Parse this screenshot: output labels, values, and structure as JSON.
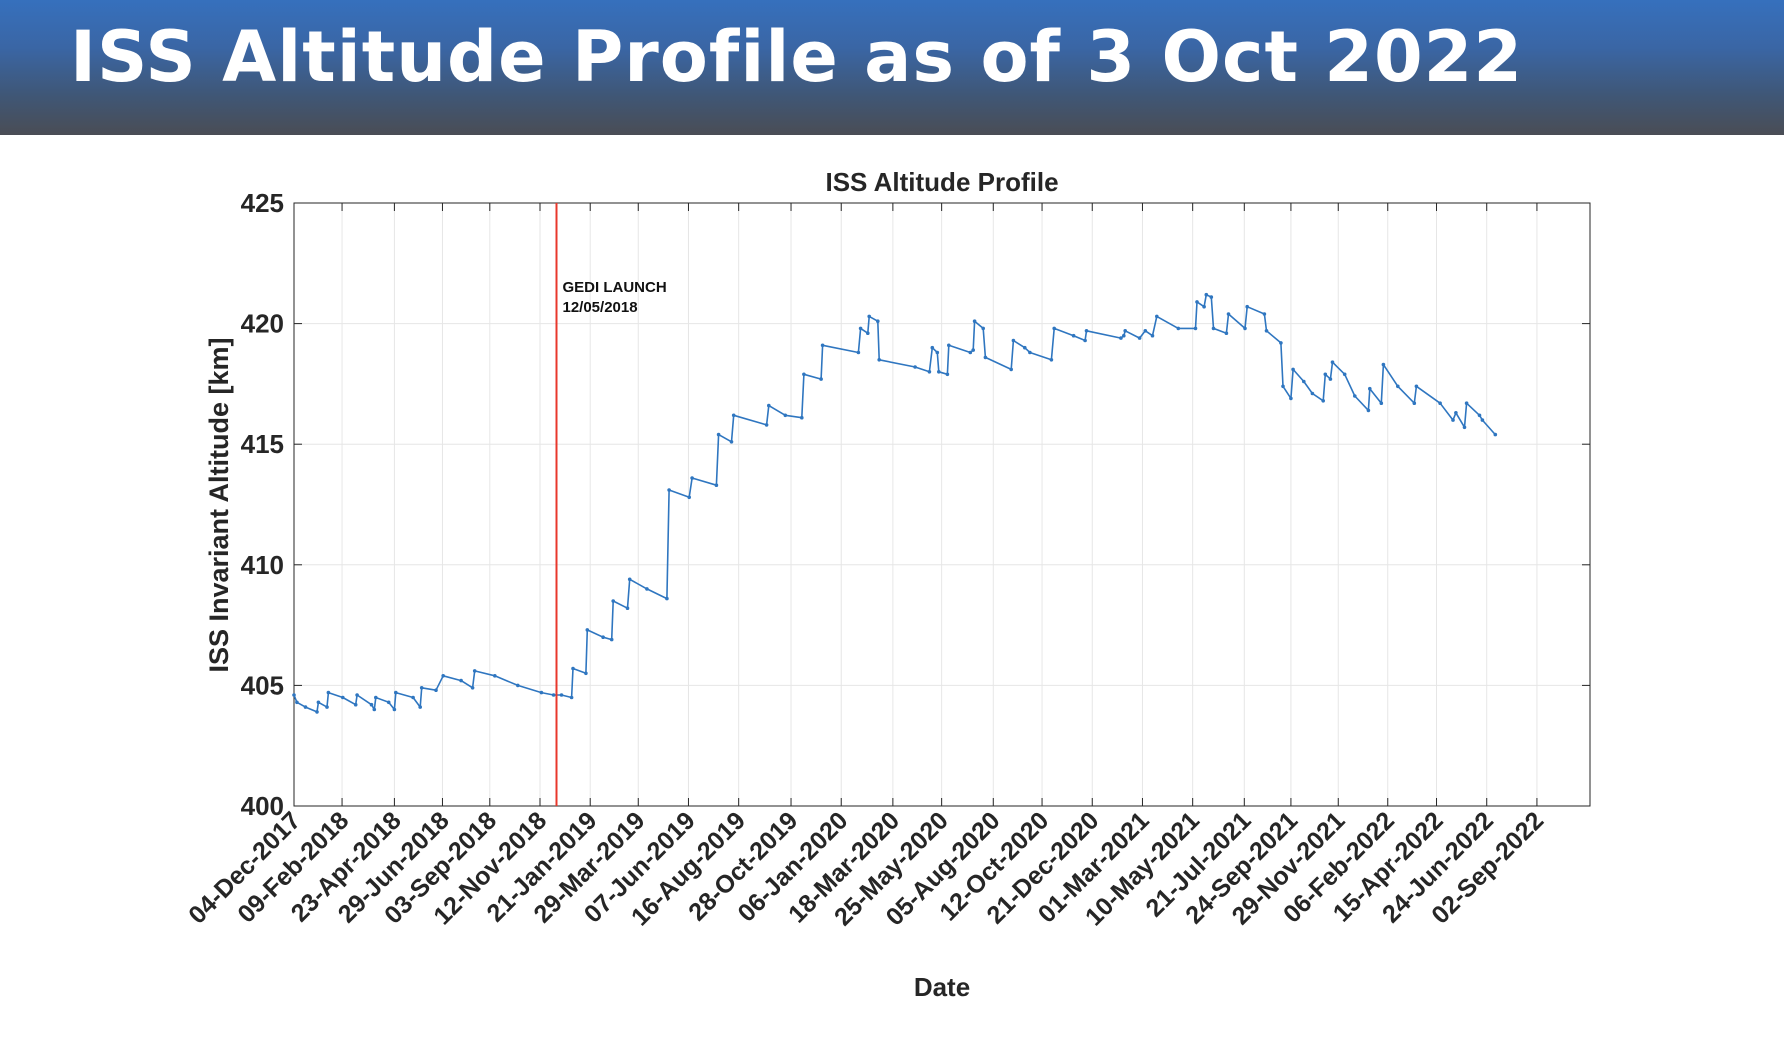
{
  "header": {
    "title": "ISS Altitude Profile as of 3 Oct 2022",
    "background": "#3a66a5"
  },
  "chart_data": {
    "type": "line",
    "title": "ISS Altitude Profile",
    "xlabel": "Date",
    "ylabel": "ISS Invariant Altitude [km]",
    "ylim": [
      400,
      425
    ],
    "yticks": [
      400,
      405,
      410,
      415,
      420,
      425
    ],
    "xlim": [
      "2017-12-04",
      "2022-11-15"
    ],
    "xtick_labels": [
      "04-Dec-2017",
      "09-Feb-2018",
      "23-Apr-2018",
      "29-Jun-2018",
      "03-Sep-2018",
      "12-Nov-2018",
      "21-Jan-2019",
      "29-Mar-2019",
      "07-Jun-2019",
      "16-Aug-2019",
      "28-Oct-2019",
      "06-Jan-2020",
      "18-Mar-2020",
      "25-May-2020",
      "05-Aug-2020",
      "12-Oct-2020",
      "21-Dec-2020",
      "01-Mar-2021",
      "10-May-2021",
      "21-Jul-2021",
      "24-Sep-2021",
      "29-Nov-2021",
      "06-Feb-2022",
      "15-Apr-2022",
      "24-Jun-2022",
      "02-Sep-2022"
    ],
    "grid": true,
    "series_color": "#2f76c0",
    "series": [
      {
        "points": [
          [
            "2017-12-04",
            404.6
          ],
          [
            "2017-12-08",
            404.3
          ],
          [
            "2017-12-20",
            404.1
          ],
          [
            "2018-01-05",
            403.9
          ],
          [
            "2018-01-07",
            404.3
          ],
          [
            "2018-01-19",
            404.1
          ],
          [
            "2018-01-21",
            404.7
          ],
          [
            "2018-02-10",
            404.5
          ],
          [
            "2018-02-28",
            404.2
          ],
          [
            "2018-03-02",
            404.6
          ],
          [
            "2018-03-22",
            404.2
          ],
          [
            "2018-03-26",
            404.0
          ],
          [
            "2018-03-28",
            404.5
          ],
          [
            "2018-04-15",
            404.3
          ],
          [
            "2018-04-23",
            404.0
          ],
          [
            "2018-04-25",
            404.7
          ],
          [
            "2018-05-19",
            404.5
          ],
          [
            "2018-05-29",
            404.1
          ],
          [
            "2018-05-31",
            404.9
          ],
          [
            "2018-06-20",
            404.8
          ],
          [
            "2018-06-30",
            405.4
          ],
          [
            "2018-07-25",
            405.2
          ],
          [
            "2018-08-10",
            404.9
          ],
          [
            "2018-08-13",
            405.6
          ],
          [
            "2018-09-10",
            405.4
          ],
          [
            "2018-10-12",
            405.0
          ],
          [
            "2018-11-14",
            404.7
          ],
          [
            "2018-12-01",
            404.6
          ],
          [
            "2018-12-12",
            404.6
          ],
          [
            "2018-12-26",
            404.5
          ],
          [
            "2018-12-28",
            405.7
          ],
          [
            "2019-01-15",
            405.5
          ],
          [
            "2019-01-17",
            407.3
          ],
          [
            "2019-02-08",
            407.0
          ],
          [
            "2019-02-20",
            406.9
          ],
          [
            "2019-02-22",
            408.5
          ],
          [
            "2019-03-14",
            408.2
          ],
          [
            "2019-03-17",
            409.4
          ],
          [
            "2019-04-10",
            409.0
          ],
          [
            "2019-05-08",
            408.6
          ],
          [
            "2019-05-11",
            413.1
          ],
          [
            "2019-06-08",
            412.8
          ],
          [
            "2019-06-12",
            413.6
          ],
          [
            "2019-07-16",
            413.3
          ],
          [
            "2019-07-19",
            415.4
          ],
          [
            "2019-08-06",
            415.1
          ],
          [
            "2019-08-09",
            416.2
          ],
          [
            "2019-09-24",
            415.8
          ],
          [
            "2019-09-27",
            416.6
          ],
          [
            "2019-10-20",
            416.2
          ],
          [
            "2019-11-12",
            416.1
          ],
          [
            "2019-11-15",
            417.9
          ],
          [
            "2019-12-09",
            417.7
          ],
          [
            "2019-12-11",
            419.1
          ],
          [
            "2020-01-30",
            418.8
          ],
          [
            "2020-02-02",
            419.8
          ],
          [
            "2020-02-12",
            419.6
          ],
          [
            "2020-02-14",
            420.3
          ],
          [
            "2020-02-26",
            420.1
          ],
          [
            "2020-02-28",
            418.5
          ],
          [
            "2020-04-18",
            418.2
          ],
          [
            "2020-05-08",
            418.0
          ],
          [
            "2020-05-12",
            419.0
          ],
          [
            "2020-05-19",
            418.8
          ],
          [
            "2020-05-21",
            418.0
          ],
          [
            "2020-06-02",
            417.9
          ],
          [
            "2020-06-04",
            419.1
          ],
          [
            "2020-07-04",
            418.8
          ],
          [
            "2020-07-08",
            418.9
          ],
          [
            "2020-07-10",
            420.1
          ],
          [
            "2020-07-22",
            419.8
          ],
          [
            "2020-07-25",
            418.6
          ],
          [
            "2020-08-30",
            418.1
          ],
          [
            "2020-09-02",
            419.3
          ],
          [
            "2020-09-18",
            419.0
          ],
          [
            "2020-09-25",
            418.8
          ],
          [
            "2020-10-25",
            418.5
          ],
          [
            "2020-10-29",
            419.8
          ],
          [
            "2020-11-25",
            419.5
          ],
          [
            "2020-12-11",
            419.3
          ],
          [
            "2020-12-13",
            419.7
          ],
          [
            "2021-01-30",
            419.4
          ],
          [
            "2021-02-03",
            419.5
          ],
          [
            "2021-02-05",
            419.7
          ],
          [
            "2021-02-25",
            419.4
          ],
          [
            "2021-03-05",
            419.7
          ],
          [
            "2021-03-15",
            419.5
          ],
          [
            "2021-03-21",
            420.3
          ],
          [
            "2021-04-20",
            419.8
          ],
          [
            "2021-05-14",
            419.8
          ],
          [
            "2021-05-16",
            420.9
          ],
          [
            "2021-05-26",
            420.7
          ],
          [
            "2021-05-29",
            421.2
          ],
          [
            "2021-06-05",
            421.1
          ],
          [
            "2021-06-08",
            419.8
          ],
          [
            "2021-06-26",
            419.6
          ],
          [
            "2021-06-29",
            420.4
          ],
          [
            "2021-07-22",
            419.8
          ],
          [
            "2021-07-25",
            420.7
          ],
          [
            "2021-08-18",
            420.4
          ],
          [
            "2021-08-21",
            419.7
          ],
          [
            "2021-09-10",
            419.2
          ],
          [
            "2021-09-13",
            417.4
          ],
          [
            "2021-09-24",
            416.9
          ],
          [
            "2021-09-27",
            418.1
          ],
          [
            "2021-10-12",
            417.6
          ],
          [
            "2021-10-24",
            417.1
          ],
          [
            "2021-11-08",
            416.8
          ],
          [
            "2021-11-11",
            417.9
          ],
          [
            "2021-11-18",
            417.7
          ],
          [
            "2021-11-21",
            418.4
          ],
          [
            "2021-12-08",
            417.9
          ],
          [
            "2021-12-22",
            417.0
          ],
          [
            "2022-01-10",
            416.4
          ],
          [
            "2022-01-12",
            417.3
          ],
          [
            "2022-01-28",
            416.7
          ],
          [
            "2022-01-31",
            418.3
          ],
          [
            "2022-02-20",
            417.4
          ],
          [
            "2022-03-15",
            416.7
          ],
          [
            "2022-03-18",
            417.4
          ],
          [
            "2022-04-20",
            416.7
          ],
          [
            "2022-05-08",
            416.0
          ],
          [
            "2022-05-12",
            416.3
          ],
          [
            "2022-05-24",
            415.7
          ],
          [
            "2022-05-27",
            416.7
          ],
          [
            "2022-06-14",
            416.2
          ],
          [
            "2022-06-18",
            416.0
          ],
          [
            "2022-07-06",
            415.4
          ]
        ]
      }
    ],
    "annotations": [
      {
        "type": "vline",
        "x": "2018-12-05",
        "color": "#e8382c",
        "text": [
          "GEDI LAUNCH",
          "12/05/2018"
        ]
      }
    ]
  }
}
